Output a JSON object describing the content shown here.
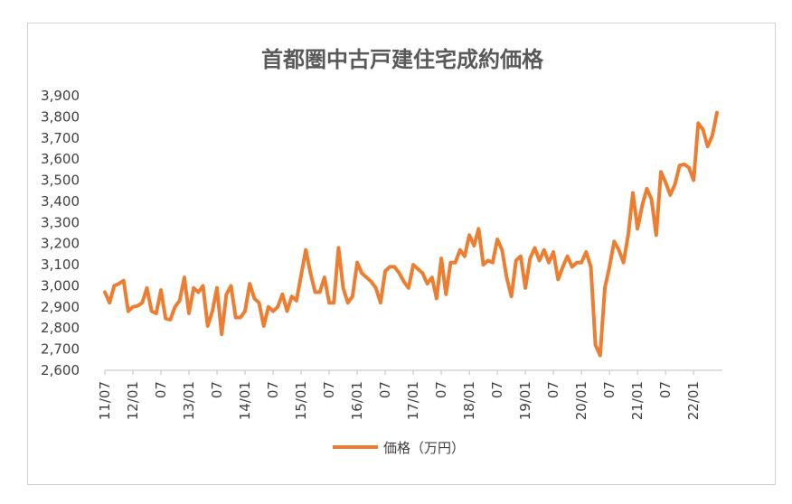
{
  "chart_data": {
    "type": "line",
    "title": "首都圏中古戸建住宅成約価格",
    "legend": {
      "position": "bottom",
      "label": "価格（万円）"
    },
    "y_axis": {
      "min": 2600,
      "max": 3900,
      "step": 100,
      "tick_labels": [
        "2,600",
        "2,700",
        "2,800",
        "2,900",
        "3,000",
        "3,100",
        "3,200",
        "3,300",
        "3,400",
        "3,500",
        "3,600",
        "3,700",
        "3,800",
        "3,900"
      ]
    },
    "x_axis": {
      "tick_labels": [
        "11/07",
        "12/01",
        "07",
        "13/01",
        "07",
        "14/01",
        "07",
        "15/01",
        "07",
        "16/01",
        "07",
        "17/01",
        "07",
        "18/01",
        "07",
        "19/01",
        "07",
        "20/01",
        "07",
        "21/01",
        "07",
        "22/01"
      ]
    },
    "grid": false,
    "color": "#ED7D31",
    "series": [
      {
        "name": "価格（万円）",
        "start": "2011-07",
        "values": [
          2970,
          2920,
          3000,
          3010,
          3025,
          2880,
          2900,
          2905,
          2920,
          2990,
          2880,
          2870,
          2980,
          2845,
          2840,
          2900,
          2930,
          3040,
          2870,
          2990,
          2970,
          3000,
          2810,
          2880,
          2990,
          2770,
          2960,
          3000,
          2850,
          2850,
          2880,
          3010,
          2940,
          2920,
          2810,
          2900,
          2880,
          2900,
          2960,
          2880,
          2950,
          2930,
          3050,
          3170,
          3060,
          2970,
          2970,
          3040,
          2920,
          2920,
          3180,
          2990,
          2920,
          2950,
          3110,
          3060,
          3040,
          3020,
          2990,
          2920,
          3070,
          3090,
          3090,
          3060,
          3020,
          2990,
          3100,
          3080,
          3060,
          3010,
          3040,
          2940,
          3130,
          2960,
          3110,
          3110,
          3170,
          3140,
          3240,
          3190,
          3270,
          3100,
          3120,
          3110,
          3220,
          3170,
          3040,
          2950,
          3120,
          3140,
          2990,
          3130,
          3180,
          3120,
          3170,
          3110,
          3160,
          3030,
          3090,
          3140,
          3090,
          3110,
          3110,
          3160,
          3090,
          2720,
          2670,
          2990,
          3090,
          3210,
          3170,
          3110,
          3240,
          3440,
          3270,
          3380,
          3460,
          3410,
          3240,
          3540,
          3490,
          3430,
          3480,
          3570,
          3575,
          3560,
          3500,
          3770,
          3740,
          3660,
          3710,
          3820
        ]
      }
    ]
  }
}
